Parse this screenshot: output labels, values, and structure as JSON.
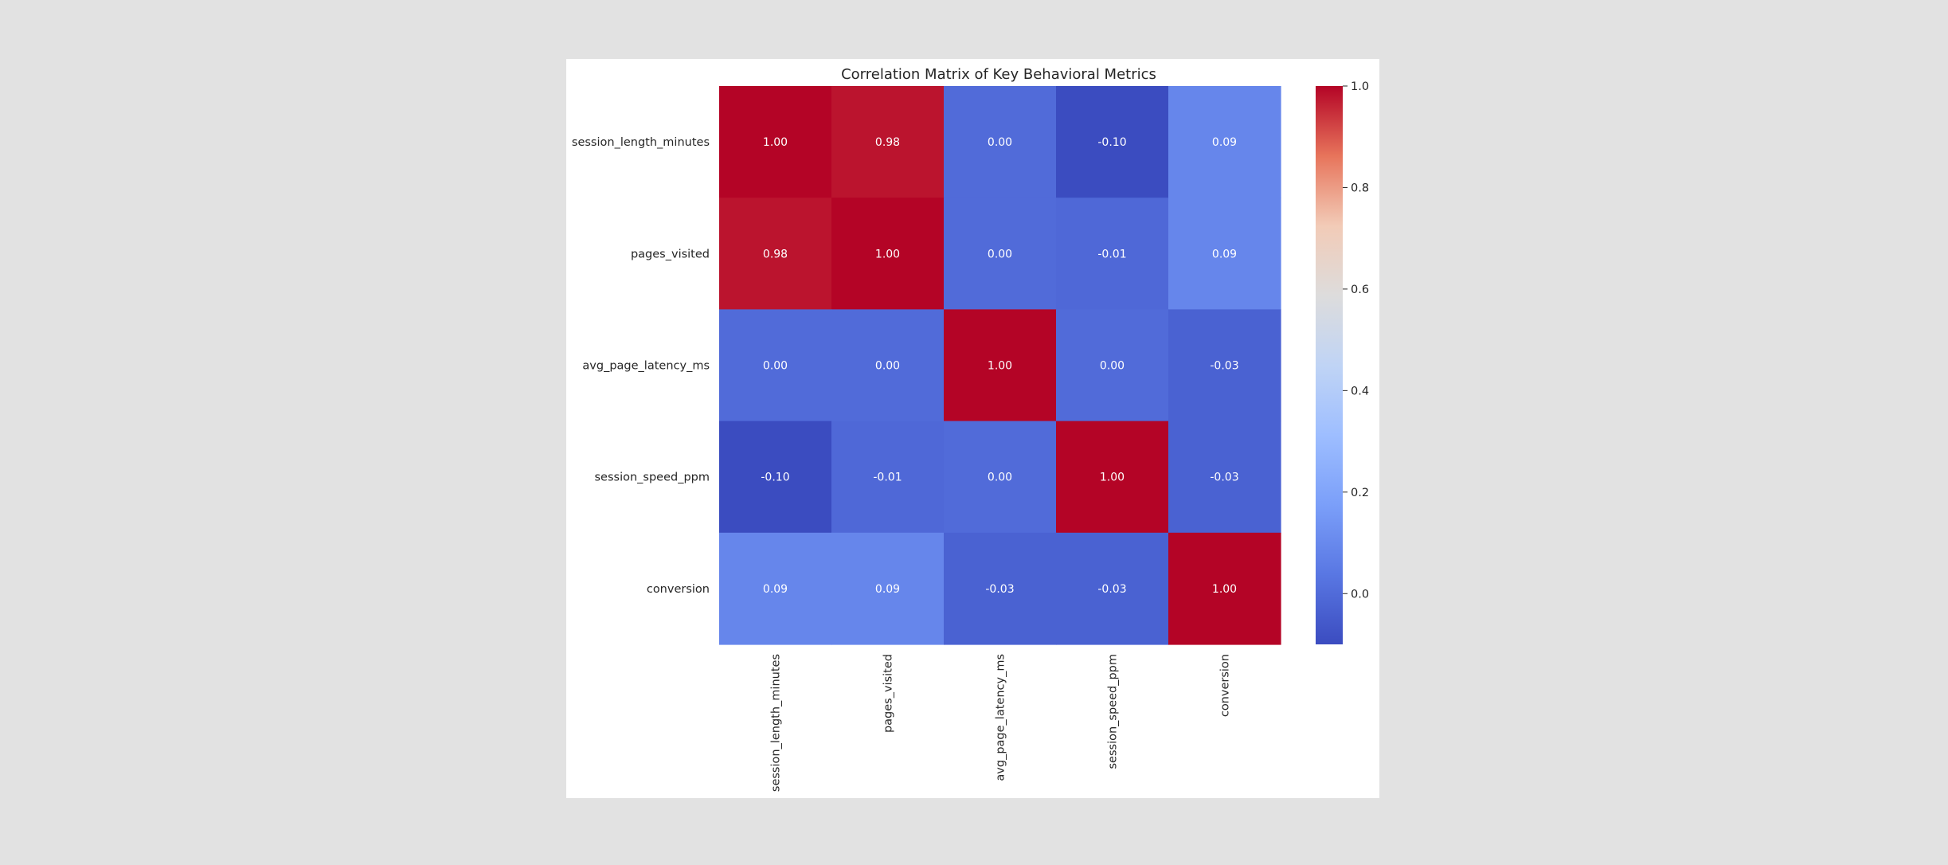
{
  "chart_data": {
    "type": "heatmap",
    "title": "Correlation Matrix of Key Behavioral Metrics",
    "xlabel": "",
    "ylabel": "",
    "rows": [
      "session_length_minutes",
      "pages_visited",
      "avg_page_latency_ms",
      "session_speed_ppm",
      "conversion"
    ],
    "columns": [
      "session_length_minutes",
      "pages_visited",
      "avg_page_latency_ms",
      "session_speed_ppm",
      "conversion"
    ],
    "values": [
      [
        1.0,
        0.98,
        0.0,
        -0.1,
        0.09
      ],
      [
        0.98,
        1.0,
        0.0,
        -0.01,
        0.09
      ],
      [
        0.0,
        0.0,
        1.0,
        0.0,
        -0.03
      ],
      [
        -0.1,
        -0.01,
        0.0,
        1.0,
        -0.03
      ],
      [
        0.09,
        0.09,
        -0.03,
        -0.03,
        1.0
      ]
    ],
    "value_format": "0.00",
    "colormap": "coolwarm",
    "vmin": -0.1,
    "vmax": 1.0,
    "colorbar": {
      "ticks": [
        0.0,
        0.2,
        0.4,
        0.6,
        0.8,
        1.0
      ],
      "tick_labels": [
        "0.0",
        "0.2",
        "0.4",
        "0.6",
        "0.8",
        "1.0"
      ],
      "placement": "right"
    }
  }
}
